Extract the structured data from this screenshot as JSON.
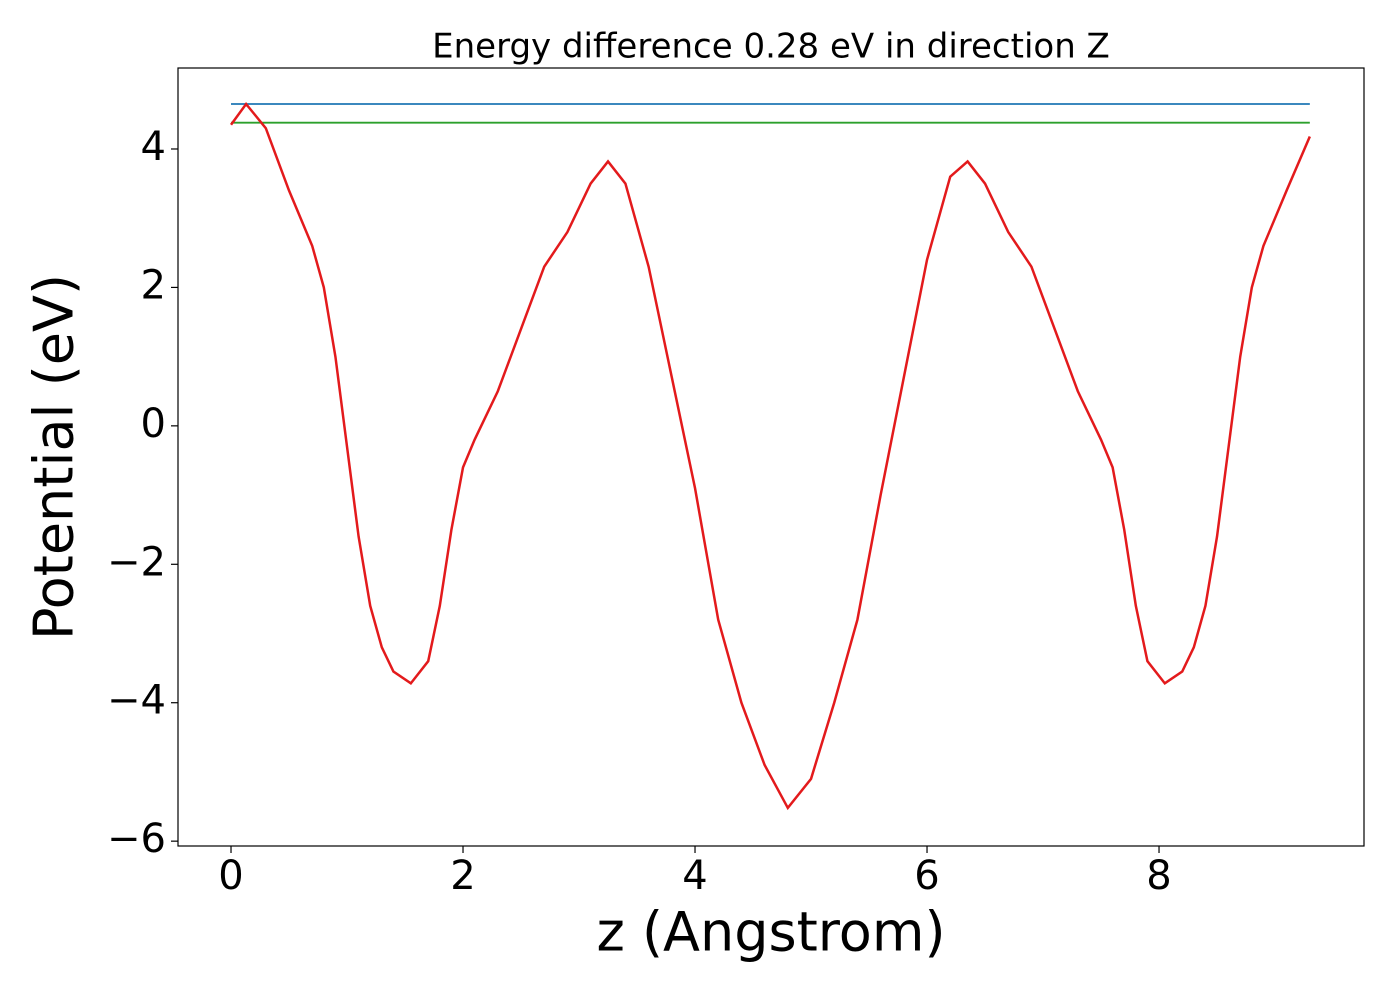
{
  "chart_data": {
    "type": "line",
    "title": "Energy difference 0.28 eV in direction Z",
    "x_label": "z (Angstrom)",
    "y_label": "Potential (eV)",
    "xlim": [
      -0.457,
      9.767
    ],
    "ylim": [
      -6.07,
      5.17
    ],
    "xticks": [
      0,
      2,
      4,
      6,
      8
    ],
    "yticks": [
      4,
      2,
      0,
      {
        "value": -2,
        "label": "−2"
      },
      {
        "value": -4,
        "label": "−4"
      },
      {
        "value": -6,
        "label": "−6"
      }
    ],
    "series": [
      {
        "color": "#1f77b4",
        "x": [
          0,
          9.3
        ],
        "values": [
          4.65,
          4.65
        ]
      },
      {
        "color": "#2ca02c",
        "x": [
          0,
          9.3
        ],
        "values": [
          4.38,
          4.38
        ]
      },
      {
        "color": "#e31a1c",
        "x": [
          0,
          0.13,
          0.3,
          0.5,
          0.7,
          0.8,
          0.9,
          1.0,
          1.1,
          1.2,
          1.3,
          1.4,
          1.55,
          1.7,
          1.8,
          1.9,
          2.0,
          2.1,
          2.3,
          2.5,
          2.7,
          2.9,
          3.1,
          3.25,
          3.4,
          3.6,
          3.8,
          4.0,
          4.2,
          4.4,
          4.6,
          4.8,
          5.0,
          5.2,
          5.4,
          5.6,
          5.8,
          6.0,
          6.2,
          6.35,
          6.5,
          6.7,
          6.9,
          7.1,
          7.3,
          7.5,
          7.6,
          7.7,
          7.8,
          7.9,
          8.05,
          8.2,
          8.3,
          8.4,
          8.5,
          8.6,
          8.7,
          8.8,
          8.9,
          9.1,
          9.3
        ],
        "values": [
          4.35,
          4.65,
          4.3,
          3.4,
          2.6,
          2.0,
          1.0,
          -0.3,
          -1.6,
          -2.6,
          -3.2,
          -3.55,
          -3.72,
          -3.4,
          -2.6,
          -1.5,
          -0.6,
          -0.2,
          0.5,
          1.4,
          2.3,
          2.8,
          3.5,
          3.82,
          3.5,
          2.3,
          0.7,
          -0.9,
          -2.8,
          -4.0,
          -4.9,
          -5.52,
          -5.1,
          -4.0,
          -2.8,
          -1.0,
          0.7,
          2.4,
          3.6,
          3.82,
          3.5,
          2.8,
          2.3,
          1.4,
          0.5,
          -0.2,
          -0.6,
          -1.5,
          -2.6,
          -3.4,
          -3.72,
          -3.55,
          -3.2,
          -2.6,
          -1.6,
          -0.3,
          1.0,
          2.0,
          2.6,
          3.4,
          4.18
        ]
      }
    ]
  }
}
